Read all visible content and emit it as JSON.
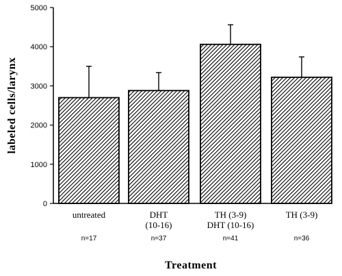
{
  "chart_data": {
    "type": "bar",
    "xlabel": "Treatment",
    "ylabel": "labeled cells/larynx",
    "ylim": [
      0,
      5000
    ],
    "yticks": [
      0,
      1000,
      2000,
      3000,
      4000,
      5000
    ],
    "grid": false,
    "fill": "diagonal-hatch",
    "categories": [
      {
        "lines": [
          "untreated"
        ],
        "n": "n=17"
      },
      {
        "lines": [
          "DHT",
          "(10-16)"
        ],
        "n": "n=37"
      },
      {
        "lines": [
          "TH (3-9)",
          "DHT (10-16)"
        ],
        "n": "n=41"
      },
      {
        "lines": [
          "TH (3-9)"
        ],
        "n": "n=36"
      }
    ],
    "values": [
      2700,
      2880,
      4060,
      3220
    ],
    "errors": [
      800,
      460,
      500,
      520
    ]
  }
}
